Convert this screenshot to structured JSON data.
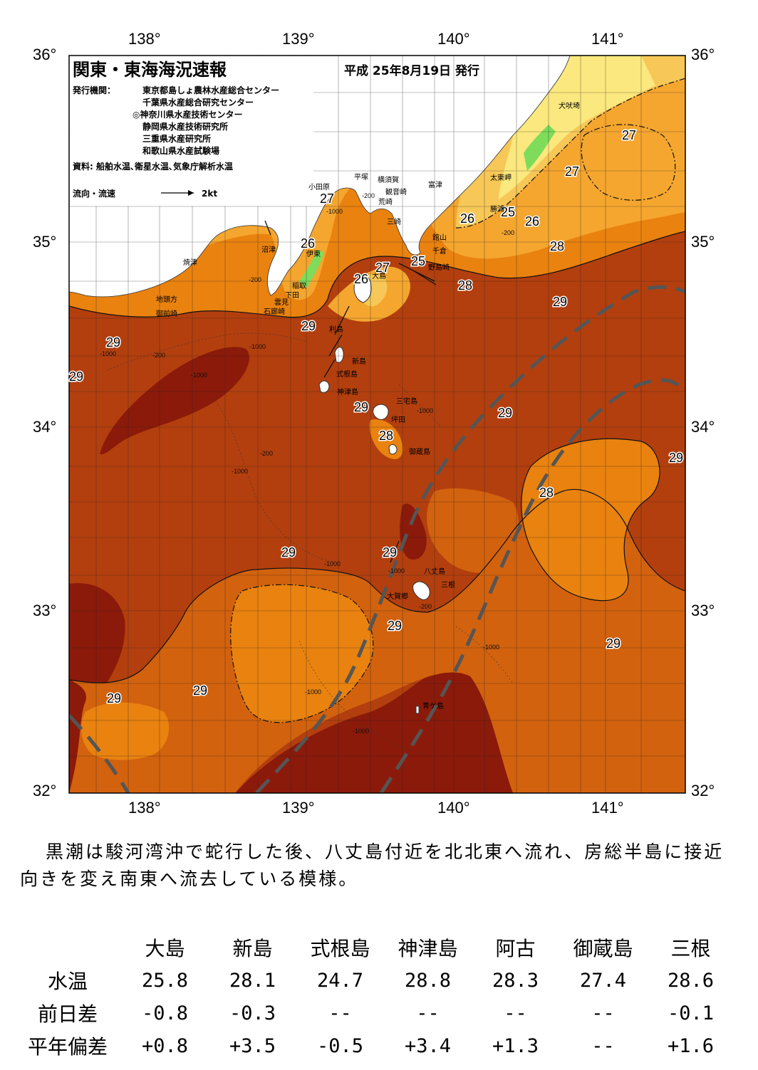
{
  "header": {
    "title": "関東・東海海況速報",
    "issue_date": "平成 25年8月19日 発行",
    "issuer_label": "発行機関：",
    "issuers": [
      "東京都島しょ農林水産総合センター",
      "千葉県水産総合研究センター",
      "◎神奈川県水産技術センター",
      "静岡県水産技術研究所",
      "三重県水産研究所",
      "和歌山県水産試験場"
    ],
    "sources": "資料: 船舶水温､衛星水温､気象庁解析水温",
    "flow_legend": "流向・流速",
    "flow_unit": "2kt"
  },
  "axes": {
    "lon_labels": [
      "138°",
      "139°",
      "140°",
      "141°"
    ],
    "lat_labels": [
      "36°",
      "35°",
      "34°",
      "33°",
      "32°"
    ]
  },
  "isotherm_labels": [
    "27",
    "27",
    "26",
    "26",
    "27",
    "27",
    "26",
    "25",
    "25",
    "26",
    "28",
    "28",
    "29",
    "29",
    "29",
    "29",
    "29",
    "28",
    "29",
    "29",
    "28",
    "29",
    "29",
    "29",
    "29",
    "29",
    "29",
    "29"
  ],
  "place_names": [
    "犬吠埼",
    "太東岬",
    "勝浦",
    "富津",
    "観音崎",
    "横須賀",
    "平塚",
    "小田原",
    "荒崎",
    "三崎",
    "館山",
    "千倉",
    "野島崎",
    "沼津",
    "伊東",
    "焼津",
    "稲取",
    "下田",
    "雲見",
    "石廊崎",
    "地頭方",
    "御前崎",
    "大島",
    "利島",
    "新島",
    "式根島",
    "神津島",
    "三宅島",
    "坪田",
    "御蔵島",
    "八丈島",
    "三根",
    "大賀郷",
    "青ケ島"
  ],
  "depth_labels": [
    "-200",
    "-1000"
  ],
  "summary": "黒潮は駿河湾沖で蛇行した後、八丈島付近を北北東へ流れ、房総半島に接近向きを変え南東へ流去している模様。",
  "table": {
    "columns": [
      "大島",
      "新島",
      "式根島",
      "神津島",
      "阿古",
      "御蔵島",
      "三根"
    ],
    "rows": [
      {
        "label": "水温",
        "values": [
          "25.8",
          "28.1",
          "24.7",
          "28.8",
          "28.3",
          "27.4",
          "28.6"
        ]
      },
      {
        "label": "前日差",
        "values": [
          "-0.8",
          "-0.3",
          "--",
          "--",
          "--",
          "--",
          "-0.1"
        ]
      },
      {
        "label": "平年偏差",
        "values": [
          "+0.8",
          "+3.5",
          "-0.5",
          "+3.4",
          "+1.3",
          "--",
          "+1.6"
        ]
      }
    ]
  },
  "colors": {
    "sst_29_dark": "#8b1a0a",
    "sst_29": "#b33f0e",
    "sst_28_5": "#d2620e",
    "sst_28": "#e9820f",
    "sst_27": "#f5a62f",
    "sst_26": "#f7c857",
    "sst_25": "#fbe87e",
    "sst_24": "#e6f28c",
    "coast_green": "#7edc5a",
    "kuroshio_axis": "#555555",
    "land": "#ffffff"
  }
}
